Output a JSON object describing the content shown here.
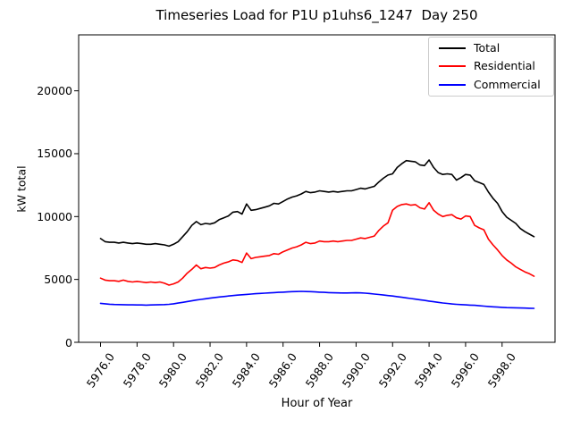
{
  "chart_data": {
    "type": "line",
    "title": "Timeseries Load for P1U p1uhs6_1247  Day 250",
    "xlabel": "Hour of Year",
    "ylabel": "kW total",
    "grid": false,
    "legend_position": "upper right",
    "xlim": [
      5974.8,
      6000.9
    ],
    "ylim": [
      0,
      24450
    ],
    "x_start": 5976.0,
    "x_step": 0.25,
    "x_end": 5999.75,
    "x_ticks": [
      "5976.0",
      "5978.0",
      "5980.0",
      "5982.0",
      "5984.0",
      "5986.0",
      "5988.0",
      "5990.0",
      "5992.0",
      "5994.0",
      "5996.0",
      "5998.0"
    ],
    "y_ticks": [
      0,
      5000,
      10000,
      15000,
      20000
    ],
    "series": [
      {
        "name": "Total",
        "color": "#000000",
        "values": [
          8250,
          8000,
          7950,
          7950,
          7900,
          7950,
          7900,
          7850,
          7900,
          7850,
          7800,
          7800,
          7850,
          7800,
          7750,
          7650,
          7800,
          8000,
          8400,
          8800,
          9300,
          9600,
          9350,
          9450,
          9400,
          9500,
          9750,
          9900,
          10050,
          10350,
          10400,
          10200,
          11000,
          10500,
          10550,
          10650,
          10750,
          10850,
          11050,
          11000,
          11200,
          11400,
          11550,
          11650,
          11800,
          12000,
          11900,
          11950,
          12050,
          12000,
          11950,
          12000,
          11950,
          12000,
          12050,
          12050,
          12150,
          12250,
          12200,
          12300,
          12400,
          12750,
          13050,
          13300,
          13400,
          13900,
          14200,
          14450,
          14400,
          14350,
          14100,
          14050,
          14500,
          13900,
          13500,
          13350,
          13400,
          13350,
          12900,
          13100,
          13350,
          13300,
          12850,
          12700,
          12550,
          11950,
          11450,
          11050,
          10400,
          9950,
          9700,
          9450,
          9050,
          8800,
          8600,
          8400
        ]
      },
      {
        "name": "Residential",
        "color": "#ff0000",
        "values": [
          5100,
          4950,
          4900,
          4900,
          4850,
          4950,
          4850,
          4800,
          4850,
          4800,
          4750,
          4800,
          4750,
          4800,
          4700,
          4550,
          4650,
          4800,
          5100,
          5500,
          5800,
          6150,
          5850,
          5950,
          5900,
          5950,
          6150,
          6300,
          6400,
          6550,
          6500,
          6350,
          7100,
          6650,
          6750,
          6800,
          6850,
          6900,
          7050,
          7000,
          7200,
          7350,
          7500,
          7600,
          7750,
          7950,
          7850,
          7900,
          8050,
          8000,
          8000,
          8050,
          8000,
          8050,
          8100,
          8100,
          8200,
          8300,
          8250,
          8350,
          8450,
          8900,
          9250,
          9500,
          10500,
          10800,
          10950,
          11000,
          10900,
          10950,
          10700,
          10600,
          11100,
          10500,
          10200,
          10000,
          10100,
          10150,
          9900,
          9800,
          10050,
          10000,
          9300,
          9100,
          8950,
          8200,
          7750,
          7350,
          6900,
          6550,
          6300,
          6000,
          5800,
          5600,
          5450,
          5250
        ]
      },
      {
        "name": "Commercial",
        "color": "#0000ff",
        "values": [
          3100,
          3060,
          3030,
          3010,
          3000,
          2990,
          2980,
          2980,
          2970,
          2970,
          2960,
          2970,
          2980,
          2990,
          3000,
          3020,
          3060,
          3120,
          3180,
          3240,
          3300,
          3360,
          3410,
          3460,
          3510,
          3560,
          3600,
          3640,
          3680,
          3720,
          3750,
          3780,
          3810,
          3840,
          3870,
          3890,
          3910,
          3930,
          3950,
          3970,
          3990,
          4010,
          4030,
          4040,
          4050,
          4040,
          4030,
          4010,
          3990,
          3970,
          3950,
          3940,
          3930,
          3920,
          3920,
          3930,
          3940,
          3930,
          3910,
          3880,
          3840,
          3800,
          3760,
          3720,
          3680,
          3630,
          3580,
          3530,
          3480,
          3430,
          3380,
          3330,
          3280,
          3230,
          3180,
          3130,
          3090,
          3050,
          3020,
          3000,
          2980,
          2960,
          2940,
          2910,
          2880,
          2850,
          2820,
          2800,
          2780,
          2760,
          2750,
          2740,
          2730,
          2720,
          2710,
          2700
        ]
      }
    ]
  }
}
